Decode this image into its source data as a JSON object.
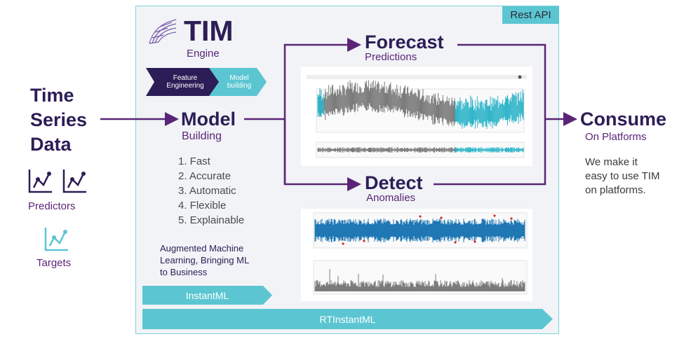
{
  "rest_api": "Rest API",
  "tim": {
    "title": "TIM",
    "subtitle": "Engine"
  },
  "pipeline": {
    "step1": [
      "Feature",
      "Engineering"
    ],
    "step2": [
      "Model",
      "building"
    ]
  },
  "time_series": {
    "lines": [
      "Time",
      "Series",
      "Data"
    ],
    "predictors_label": "Predictors",
    "targets_label": "Targets"
  },
  "model": {
    "title": "Model",
    "subtitle": "Building",
    "features": [
      "1. Fast",
      "2. Accurate",
      "3. Automatic",
      "4. Flexible",
      "5. Explainable"
    ],
    "tagline_lines": [
      "Augmented Machine",
      "Learning, Bringing ML",
      "to Business"
    ]
  },
  "forecast": {
    "title": "Forecast",
    "subtitle": "Predictions"
  },
  "detect": {
    "title": "Detect",
    "subtitle": "Anomalies"
  },
  "consume": {
    "title": "Consume",
    "subtitle": "On Platforms",
    "description_lines": [
      "We make it",
      "easy to use TIM",
      "on platforms."
    ]
  },
  "bars": {
    "instantml": "InstantML",
    "rtinstantml": "RTInstantML"
  },
  "colors": {
    "navy": "#2c1d56",
    "purple": "#5a2576",
    "teal": "#5bc6d1",
    "series_grey": "#7a7a7a",
    "series_teal": "#2fb5c9",
    "series_blue": "#1f77b4",
    "anomaly_red": "#d62728"
  }
}
